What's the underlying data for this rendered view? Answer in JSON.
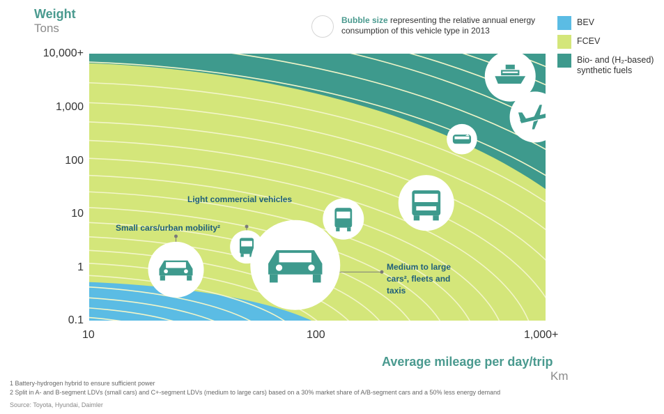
{
  "y_axis": {
    "title": "Weight",
    "unit": "Tons"
  },
  "x_axis": {
    "title": "Average mileage per day/trip",
    "unit": "Km"
  },
  "bubble_note": {
    "bold": "Bubble size",
    "text": " representing the relative annual energy consumption of this vehicle type in 2013"
  },
  "legend": [
    {
      "label": "BEV",
      "color": "#5bbce4"
    },
    {
      "label": "FCEV",
      "color": "#d4e67a"
    },
    {
      "label": "Bio- and (H₂-based) synthetic fuels",
      "color": "#3e9a8d"
    }
  ],
  "chart_data": {
    "type": "scatter",
    "x_scale": "log",
    "y_scale": "log",
    "xlim": [
      10,
      1000
    ],
    "ylim": [
      0.1,
      10000
    ],
    "x_ticks": [
      "10",
      "100",
      "1,000+"
    ],
    "y_ticks": [
      "10,000+",
      "1,000",
      "100",
      "10",
      "1",
      "0.1"
    ],
    "regions": [
      {
        "name": "BEV",
        "color": "#5bbce4"
      },
      {
        "name": "FCEV",
        "color": "#d4e67a"
      },
      {
        "name": "Bio- and (H₂-based) synthetic fuels",
        "color": "#3e9a8d"
      }
    ],
    "bubbles": [
      {
        "vehicle": "small car",
        "x": 24,
        "y": 0.9,
        "size": 0.4,
        "icon": "car-icon"
      },
      {
        "vehicle": "light commercial vehicle",
        "x": 49,
        "y": 2.4,
        "size": 0.17,
        "icon": "van-icon"
      },
      {
        "vehicle": "medium to large car",
        "x": 80,
        "y": 1.1,
        "size": 0.75,
        "icon": "car-icon"
      },
      {
        "vehicle": "bus",
        "x": 130,
        "y": 8,
        "size": 0.25,
        "icon": "bus-icon"
      },
      {
        "vehicle": "truck",
        "x": 300,
        "y": 16,
        "size": 0.4,
        "icon": "truck-icon"
      },
      {
        "vehicle": "train",
        "x": 430,
        "y": 250,
        "size": 0.14,
        "icon": "train-icon"
      },
      {
        "vehicle": "ship",
        "x": 700,
        "y": 3800,
        "size": 0.35,
        "icon": "ship-icon"
      },
      {
        "vehicle": "plane",
        "x": 900,
        "y": 650,
        "size": 0.35,
        "icon": "plane-icon"
      }
    ],
    "annotations": [
      {
        "text": "Small cars/urban mobility²"
      },
      {
        "text": "Light commercial vehicles"
      },
      {
        "text": "Medium to large cars², fleets and taxis"
      },
      {
        "text": "1"
      },
      {
        "text": "1"
      }
    ]
  },
  "footnotes": [
    "1 Battery-hydrogen hybrid to ensure sufficient power",
    "2 Split in A- and B-segment LDVs (small cars) and C+-segment LDVs (medium to large cars) based on a 30% market share of A/B-segment cars and a 50% less energy demand",
    "Source: Toyota, Hyundai, Daimler"
  ]
}
